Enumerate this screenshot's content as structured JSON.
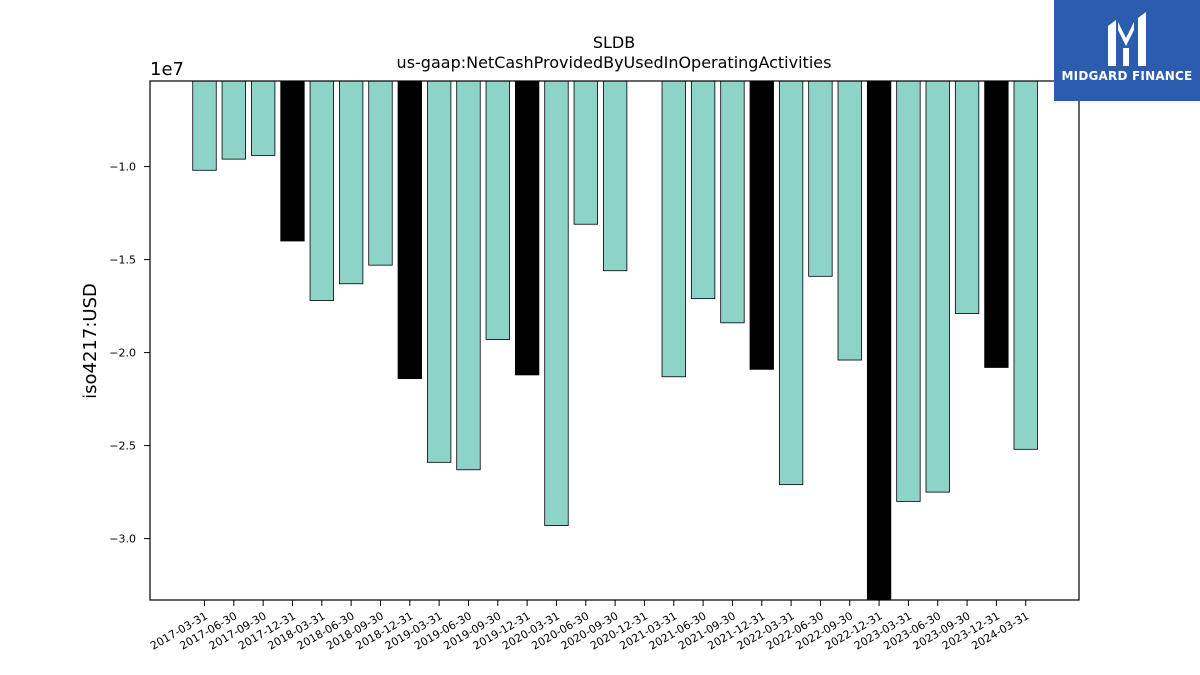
{
  "chart_data": {
    "type": "bar",
    "title": "SLDB",
    "subtitle": "us-gaap:NetCashProvidedByUsedInOperatingActivities",
    "ylabel": "iso4217:USD",
    "xlabel": "",
    "scale_label": "1e7",
    "ylim": [
      -3.33,
      -0.54
    ],
    "yticks": [
      -1.0,
      -1.5,
      -2.0,
      -2.5,
      -3.0
    ],
    "ytick_labels": [
      "−1.0",
      "−1.5",
      "−2.0",
      "−2.5",
      "−3.0"
    ],
    "grid": false,
    "categories": [
      "2017-03-31",
      "2017-06-30",
      "2017-09-30",
      "2017-12-31",
      "2018-03-31",
      "2018-06-30",
      "2018-09-30",
      "2018-12-31",
      "2019-03-31",
      "2019-06-30",
      "2019-09-30",
      "2019-12-31",
      "2020-03-31",
      "2020-06-30",
      "2020-09-30",
      "2020-12-31",
      "2021-03-31",
      "2021-06-30",
      "2021-09-30",
      "2021-12-31",
      "2022-03-31",
      "2022-06-30",
      "2022-09-30",
      "2022-12-31",
      "2023-03-31",
      "2023-06-30",
      "2023-09-30",
      "2023-12-31",
      "2024-03-31"
    ],
    "values": [
      -1.02,
      -0.96,
      -0.94,
      -1.4,
      -1.72,
      -1.63,
      -1.53,
      -2.14,
      -2.59,
      -2.63,
      -1.93,
      -2.12,
      -2.93,
      -1.31,
      -1.56,
      null,
      -2.13,
      -1.71,
      -1.84,
      -2.09,
      -2.71,
      -1.59,
      -2.04,
      -3.4,
      -2.8,
      -2.75,
      -1.79,
      -2.08,
      -2.52
    ],
    "annual_flags": [
      false,
      false,
      false,
      true,
      false,
      false,
      false,
      true,
      false,
      false,
      false,
      true,
      false,
      false,
      false,
      true,
      false,
      false,
      false,
      true,
      false,
      false,
      false,
      true,
      false,
      false,
      false,
      true,
      false
    ],
    "colors": {
      "quarterly": "#8dd3c7",
      "annual": "#000000",
      "axis": "#000000"
    }
  },
  "logo": {
    "text": "MIDGARD FINANCE",
    "color": "#2b5cad"
  }
}
